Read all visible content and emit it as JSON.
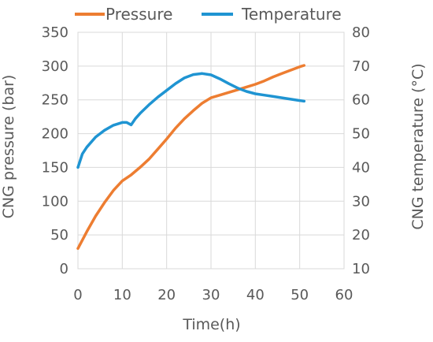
{
  "chart_data": {
    "type": "line",
    "xlabel": "Time(h)",
    "ylabel_left": "CNG pressure (bar)",
    "ylabel_right": "CNG temperature (°C)",
    "xlim": [
      0,
      60
    ],
    "xticks": [
      0,
      10,
      20,
      30,
      40,
      50,
      60
    ],
    "ylim_left": [
      0,
      350
    ],
    "yticks_left": [
      0,
      50,
      100,
      150,
      200,
      250,
      300,
      350
    ],
    "ylim_right": [
      10,
      80
    ],
    "yticks_right": [
      10,
      20,
      30,
      40,
      50,
      60,
      70,
      80
    ],
    "grid": true,
    "legend_position": "top",
    "series": [
      {
        "name": "Pressure",
        "axis": "left",
        "color": "#ED7D31",
        "x": [
          0,
          2,
          4,
          6,
          8,
          10,
          12,
          14,
          16,
          18,
          20,
          22,
          24,
          26,
          28,
          30,
          32,
          34,
          36,
          38,
          40,
          42,
          44,
          46,
          48,
          50,
          51
        ],
        "y": [
          30,
          55,
          78,
          98,
          116,
          130,
          139,
          150,
          162,
          177,
          192,
          208,
          222,
          234,
          245,
          253,
          257,
          261,
          265,
          269,
          273,
          278,
          284,
          289,
          294,
          299,
          301
        ]
      },
      {
        "name": "Temperature",
        "axis": "right",
        "color": "#1F94D2",
        "x": [
          0,
          1,
          2,
          4,
          6,
          8,
          10,
          11,
          12,
          13,
          14,
          16,
          18,
          20,
          22,
          24,
          26,
          28,
          30,
          32,
          34,
          36,
          38,
          40,
          42,
          44,
          46,
          48,
          50,
          51
        ],
        "y": [
          40,
          44,
          46,
          49,
          51,
          52.5,
          53.3,
          53.3,
          52.6,
          54.5,
          56,
          58.5,
          60.8,
          62.8,
          64.8,
          66.5,
          67.5,
          67.8,
          67.4,
          66.2,
          64.8,
          63.5,
          62.5,
          61.8,
          61.4,
          61,
          60.6,
          60.2,
          59.8,
          59.6
        ]
      }
    ]
  }
}
